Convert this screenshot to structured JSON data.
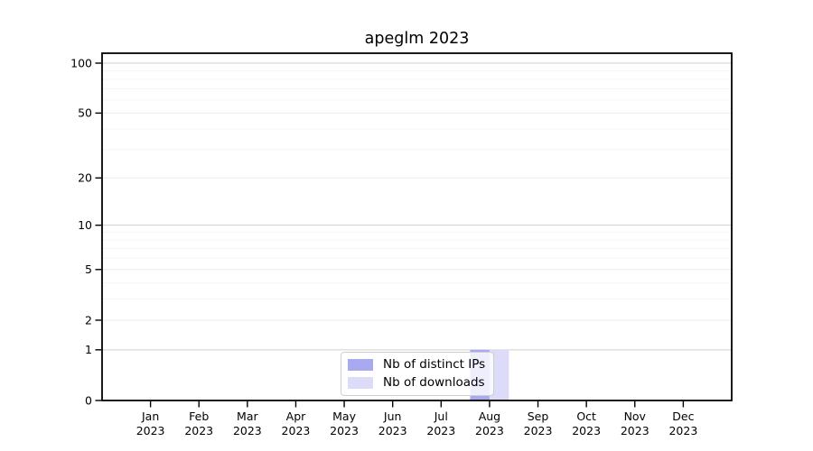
{
  "chart_data": {
    "type": "bar",
    "title": "apeglm 2023",
    "categories": [
      "Jan",
      "Feb",
      "Mar",
      "Apr",
      "May",
      "Jun",
      "Jul",
      "Aug",
      "Sep",
      "Oct",
      "Nov",
      "Dec"
    ],
    "x_tick_year": "2023",
    "series": [
      {
        "name": "Nb of distinct IPs",
        "color": "#a9a9ef",
        "values": [
          0,
          0,
          0,
          0,
          0,
          0,
          0,
          1,
          0,
          0,
          0,
          0
        ]
      },
      {
        "name": "Nb of downloads",
        "color": "#dcdcf8",
        "values": [
          0,
          0,
          0,
          0,
          0,
          0,
          0,
          1,
          0,
          0,
          0,
          0
        ]
      }
    ],
    "xlabel": "",
    "ylabel": "",
    "y_scale": "log1p",
    "y_ticks": [
      0,
      1,
      2,
      5,
      10,
      20,
      50,
      100
    ],
    "y_minor_ticks": [
      3,
      4,
      6,
      7,
      8,
      9,
      30,
      40,
      60,
      70,
      80,
      90
    ],
    "ylim": [
      0,
      115
    ],
    "grid": true,
    "legend_position": "lower center"
  }
}
